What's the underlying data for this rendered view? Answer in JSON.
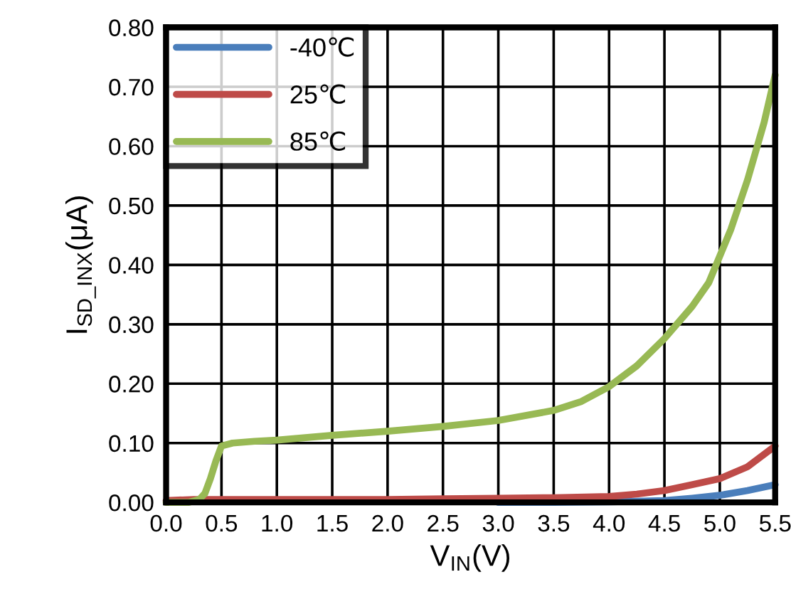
{
  "chart_data": {
    "type": "line",
    "xlabel": "V$_{IN}$(V)",
    "ylabel": "I$_{SD_INX}$(μA)",
    "xlim": [
      0,
      5.5
    ],
    "xticks": [
      {
        "value": 0,
        "label": "0.0"
      },
      0.5,
      {
        "value": 1,
        "label": "1.0"
      },
      1.5,
      {
        "value": 2,
        "label": "2.0"
      },
      2.5,
      {
        "value": 3,
        "label": "3.0"
      },
      3.5,
      {
        "value": 4,
        "label": "4.0"
      },
      4.5,
      {
        "value": 5,
        "label": "5.0"
      },
      5.5
    ],
    "ylim": [
      0,
      0.8
    ],
    "yticks": [
      {
        "value": 0,
        "label": "0.00"
      },
      {
        "value": 0.1,
        "label": "0.10"
      },
      {
        "value": 0.2,
        "label": "0.20"
      },
      {
        "value": 0.3,
        "label": "0.30"
      },
      {
        "value": 0.4,
        "label": "0.40"
      },
      {
        "value": 0.5,
        "label": "0.50"
      },
      {
        "value": 0.6,
        "label": "0.60"
      },
      {
        "value": 0.7,
        "label": "0.70"
      },
      {
        "value": 0.8,
        "label": "0.80"
      }
    ],
    "grid": true,
    "legend": "top left",
    "marker": "none",
    "line_style": "solid",
    "series": [
      {
        "name": "-40℃",
        "color": "#4a7ebb",
        "x": [
          3.0,
          3.5,
          4.0,
          4.25,
          4.5,
          4.75,
          5.0,
          5.25,
          5.5
        ],
        "values": [
          0.0,
          0.0,
          0.001,
          0.002,
          0.003,
          0.007,
          0.012,
          0.02,
          0.03
        ]
      },
      {
        "name": "25℃",
        "color": "#be4b48",
        "x": [
          0.0,
          0.25,
          0.5,
          0.75,
          1.0,
          1.5,
          2.0,
          2.5,
          3.0,
          3.5,
          4.0,
          4.25,
          4.5,
          4.75,
          5.0,
          5.25,
          5.5
        ],
        "values": [
          0.003,
          0.005,
          0.005,
          0.005,
          0.005,
          0.005,
          0.005,
          0.006,
          0.007,
          0.008,
          0.01,
          0.014,
          0.02,
          0.03,
          0.04,
          0.06,
          0.095
        ]
      },
      {
        "name": "85℃",
        "color": "#98b954",
        "x": [
          0.0,
          0.2,
          0.3,
          0.35,
          0.4,
          0.45,
          0.5,
          0.6,
          0.8,
          1.0,
          1.5,
          2.0,
          2.5,
          3.0,
          3.5,
          3.75,
          4.0,
          4.25,
          4.5,
          4.75,
          4.9,
          5.0,
          5.1,
          5.25,
          5.4,
          5.5
        ],
        "values": [
          0.0,
          0.0,
          0.005,
          0.015,
          0.04,
          0.07,
          0.095,
          0.1,
          0.103,
          0.105,
          0.113,
          0.12,
          0.128,
          0.138,
          0.155,
          0.17,
          0.195,
          0.23,
          0.276,
          0.33,
          0.37,
          0.415,
          0.46,
          0.543,
          0.64,
          0.72
        ]
      }
    ]
  }
}
